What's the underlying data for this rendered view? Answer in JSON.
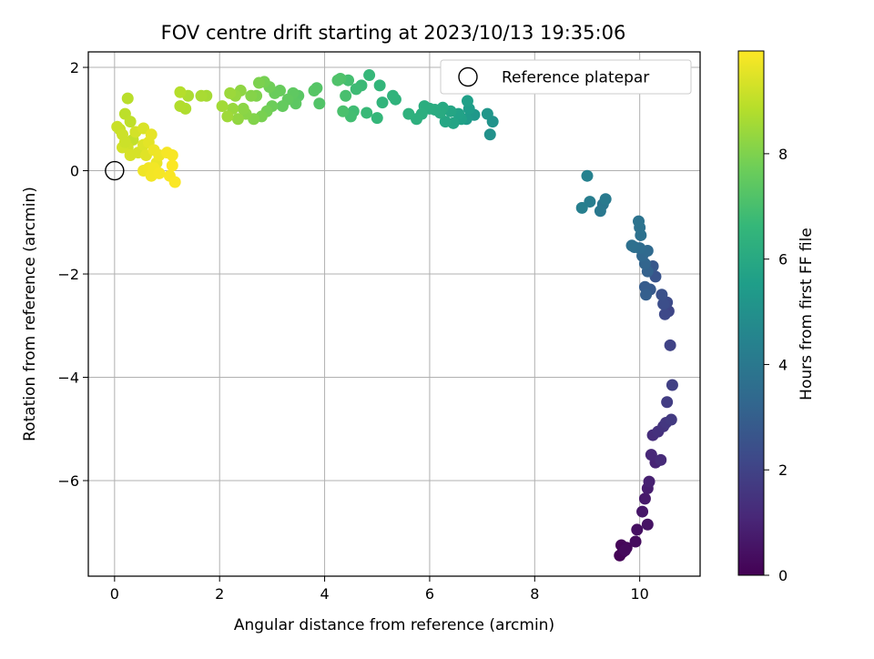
{
  "chart_data": {
    "type": "scatter",
    "title": "FOV centre drift starting at 2023/10/13 19:35:06",
    "xlabel": "Angular distance from reference (arcmin)",
    "ylabel": "Rotation from reference (arcmin)",
    "xlim": [
      -0.5,
      11.15
    ],
    "ylim": [
      -7.85,
      2.3
    ],
    "xticks": [
      0,
      2,
      4,
      6,
      8,
      10
    ],
    "yticks": [
      -6,
      -4,
      -2,
      0,
      2
    ],
    "grid": true,
    "legend": {
      "placement": "top-right",
      "entries": [
        "Reference platepar"
      ]
    },
    "reference_point": {
      "x": 0,
      "y": 0
    },
    "colorbar": {
      "label": "Hours from first FF file",
      "colormap": "viridis",
      "range": [
        0,
        9.95
      ],
      "ticks": [
        0,
        2,
        4,
        6,
        8
      ]
    },
    "colormap_stops": [
      "#440154",
      "#482878",
      "#3e4989",
      "#31688e",
      "#26828e",
      "#1f9e89",
      "#35b779",
      "#6ece58",
      "#b5de2b",
      "#fde725"
    ],
    "points": [
      [
        9.62,
        -7.45,
        0.05
      ],
      [
        9.68,
        -7.38,
        0.1
      ],
      [
        9.65,
        -7.25,
        0.15
      ],
      [
        9.75,
        -7.3,
        0.2
      ],
      [
        9.72,
        -7.35,
        0.25
      ],
      [
        9.92,
        -7.18,
        0.3
      ],
      [
        9.95,
        -6.95,
        0.4
      ],
      [
        10.15,
        -6.85,
        0.5
      ],
      [
        10.05,
        -6.6,
        0.6
      ],
      [
        10.1,
        -6.35,
        0.7
      ],
      [
        10.15,
        -6.15,
        0.8
      ],
      [
        10.18,
        -6.02,
        0.9
      ],
      [
        10.3,
        -5.65,
        1.0
      ],
      [
        10.22,
        -5.5,
        1.1
      ],
      [
        10.4,
        -5.6,
        1.2
      ],
      [
        10.25,
        -5.12,
        1.3
      ],
      [
        10.35,
        -5.05,
        1.4
      ],
      [
        10.45,
        -4.95,
        1.5
      ],
      [
        10.5,
        -4.88,
        1.6
      ],
      [
        10.6,
        -4.82,
        1.7
      ],
      [
        10.52,
        -4.48,
        1.8
      ],
      [
        10.62,
        -4.15,
        1.9
      ],
      [
        10.58,
        -3.38,
        2.0
      ],
      [
        10.55,
        -2.72,
        2.1
      ],
      [
        10.48,
        -2.78,
        2.2
      ],
      [
        10.52,
        -2.55,
        2.3
      ],
      [
        10.45,
        -2.58,
        2.4
      ],
      [
        10.42,
        -2.4,
        2.5
      ],
      [
        10.3,
        -2.05,
        2.6
      ],
      [
        10.25,
        -1.85,
        2.7
      ],
      [
        10.2,
        -2.3,
        2.8
      ],
      [
        10.1,
        -2.25,
        2.9
      ],
      [
        10.12,
        -2.4,
        3.0
      ],
      [
        10.15,
        -1.95,
        3.1
      ],
      [
        10.1,
        -1.8,
        3.2
      ],
      [
        10.05,
        -1.65,
        3.3
      ],
      [
        10.15,
        -1.55,
        3.4
      ],
      [
        10.0,
        -1.5,
        3.5
      ],
      [
        9.9,
        -1.48,
        3.6
      ],
      [
        9.85,
        -1.45,
        3.65
      ],
      [
        10.02,
        -1.25,
        3.7
      ],
      [
        10.0,
        -1.1,
        3.75
      ],
      [
        9.98,
        -0.98,
        3.8
      ],
      [
        9.3,
        -0.65,
        3.9
      ],
      [
        9.25,
        -0.78,
        4.0
      ],
      [
        9.35,
        -0.55,
        4.1
      ],
      [
        9.05,
        -0.6,
        4.2
      ],
      [
        8.9,
        -0.72,
        4.3
      ],
      [
        9.0,
        -0.1,
        4.4
      ],
      [
        7.15,
        0.7,
        5.0
      ],
      [
        7.2,
        0.95,
        5.1
      ],
      [
        7.1,
        1.1,
        5.2
      ],
      [
        6.85,
        1.08,
        5.3
      ],
      [
        6.7,
        1.0,
        5.4
      ],
      [
        6.75,
        1.2,
        5.5
      ],
      [
        6.72,
        1.35,
        5.6
      ],
      [
        6.6,
        1.0,
        5.65
      ],
      [
        6.55,
        1.1,
        5.7
      ],
      [
        6.45,
        0.92,
        5.8
      ],
      [
        6.4,
        1.15,
        5.85
      ],
      [
        6.3,
        0.95,
        5.9
      ],
      [
        6.25,
        1.22,
        6.0
      ],
      [
        6.2,
        1.12,
        6.05
      ],
      [
        6.1,
        1.18,
        6.1
      ],
      [
        6.0,
        1.2,
        6.15
      ],
      [
        5.9,
        1.25,
        6.2
      ],
      [
        5.85,
        1.1,
        6.25
      ],
      [
        5.75,
        1.0,
        6.3
      ],
      [
        5.6,
        1.1,
        6.35
      ],
      [
        5.35,
        1.38,
        6.4
      ],
      [
        5.3,
        1.45,
        6.45
      ],
      [
        5.1,
        1.32,
        6.5
      ],
      [
        5.05,
        1.65,
        6.55
      ],
      [
        5.0,
        1.02,
        6.6
      ],
      [
        4.85,
        1.85,
        6.65
      ],
      [
        4.8,
        1.12,
        6.7
      ],
      [
        4.7,
        1.65,
        6.75
      ],
      [
        4.6,
        1.58,
        6.8
      ],
      [
        4.55,
        1.15,
        6.85
      ],
      [
        4.5,
        1.05,
        6.9
      ],
      [
        4.45,
        1.75,
        6.95
      ],
      [
        4.4,
        1.45,
        7.0
      ],
      [
        4.35,
        1.15,
        7.05
      ],
      [
        4.3,
        1.78,
        7.1
      ],
      [
        4.25,
        1.75,
        7.15
      ],
      [
        3.9,
        1.3,
        7.2
      ],
      [
        3.85,
        1.6,
        7.25
      ],
      [
        3.8,
        1.55,
        7.3
      ],
      [
        3.5,
        1.45,
        7.35
      ],
      [
        3.45,
        1.3,
        7.4
      ],
      [
        3.4,
        1.5,
        7.45
      ],
      [
        3.3,
        1.38,
        7.5
      ],
      [
        3.2,
        1.25,
        7.55
      ],
      [
        3.15,
        1.55,
        7.6
      ],
      [
        3.05,
        1.5,
        7.65
      ],
      [
        3.0,
        1.25,
        7.7
      ],
      [
        2.95,
        1.62,
        7.75
      ],
      [
        2.9,
        1.15,
        7.8
      ],
      [
        2.85,
        1.72,
        7.85
      ],
      [
        2.8,
        1.05,
        7.9
      ],
      [
        2.75,
        1.7,
        7.95
      ],
      [
        2.7,
        1.45,
        8.0
      ],
      [
        2.65,
        1.0,
        8.05
      ],
      [
        2.6,
        1.45,
        8.1
      ],
      [
        2.5,
        1.1,
        8.15
      ],
      [
        2.45,
        1.2,
        8.2
      ],
      [
        2.4,
        1.55,
        8.25
      ],
      [
        2.35,
        1.0,
        8.3
      ],
      [
        2.3,
        1.45,
        8.35
      ],
      [
        2.25,
        1.2,
        8.4
      ],
      [
        2.2,
        1.5,
        8.45
      ],
      [
        2.15,
        1.05,
        8.5
      ],
      [
        2.05,
        1.25,
        8.55
      ],
      [
        1.75,
        1.45,
        8.6
      ],
      [
        1.65,
        1.45,
        8.65
      ],
      [
        1.4,
        1.45,
        8.7
      ],
      [
        1.35,
        1.2,
        8.75
      ],
      [
        1.25,
        1.25,
        8.8
      ],
      [
        1.25,
        1.52,
        8.85
      ],
      [
        0.25,
        1.4,
        8.9
      ],
      [
        0.2,
        1.1,
        8.95
      ],
      [
        0.3,
        0.95,
        9.0
      ],
      [
        0.35,
        0.6,
        9.05
      ],
      [
        0.1,
        0.8,
        9.1
      ],
      [
        0.05,
        0.85,
        9.15
      ],
      [
        0.15,
        0.7,
        9.2
      ],
      [
        0.25,
        0.45,
        9.25
      ],
      [
        0.4,
        0.75,
        9.3
      ],
      [
        0.45,
        0.35,
        9.35
      ],
      [
        0.55,
        0.82,
        9.4
      ],
      [
        0.55,
        0.5,
        9.45
      ],
      [
        0.6,
        0.3,
        9.5
      ],
      [
        0.65,
        0.55,
        9.55
      ],
      [
        0.7,
        0.7,
        9.6
      ],
      [
        0.8,
        0.15,
        9.65
      ],
      [
        0.75,
        0.4,
        9.7
      ],
      [
        0.85,
        0.3,
        9.72
      ],
      [
        0.55,
        0.0,
        9.74
      ],
      [
        0.65,
        0.05,
        9.76
      ],
      [
        0.75,
        0.05,
        9.78
      ],
      [
        0.7,
        -0.1,
        9.8
      ],
      [
        0.85,
        -0.05,
        9.82
      ],
      [
        1.0,
        0.35,
        9.84
      ],
      [
        1.1,
        0.3,
        9.86
      ],
      [
        1.05,
        -0.1,
        9.88
      ],
      [
        1.15,
        -0.22,
        9.9
      ],
      [
        1.1,
        0.1,
        9.92
      ],
      [
        0.15,
        0.45,
        9.3
      ],
      [
        0.3,
        0.3,
        9.35
      ],
      [
        0.2,
        0.55,
        9.2
      ]
    ]
  }
}
